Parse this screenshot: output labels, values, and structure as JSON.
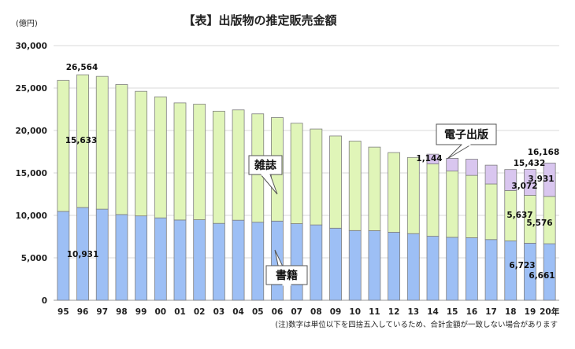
{
  "chart_data": {
    "type": "bar",
    "stacked": true,
    "title": "【表】出版物の推定販売金額",
    "unit_label": "(億円)",
    "categories": [
      "95",
      "96",
      "97",
      "98",
      "99",
      "00",
      "01",
      "02",
      "03",
      "04",
      "05",
      "06",
      "07",
      "08",
      "09",
      "10",
      "11",
      "12",
      "13",
      "14",
      "15",
      "16",
      "17",
      "18",
      "19",
      "20年"
    ],
    "series": [
      {
        "name": "書籍",
        "color": "#9dbff5",
        "values": [
          10470,
          10931,
          10730,
          10100,
          9940,
          9706,
          9456,
          9490,
          9056,
          9429,
          9197,
          9326,
          9026,
          8878,
          8492,
          8213,
          8199,
          8013,
          7851,
          7544,
          7419,
          7370,
          7152,
          6991,
          6723,
          6661
        ]
      },
      {
        "name": "雑誌",
        "color": "#e0f5b8",
        "values": [
          15430,
          15633,
          15644,
          15315,
          14672,
          14261,
          13794,
          13616,
          13222,
          12998,
          12767,
          12200,
          11827,
          11299,
          10864,
          10536,
          9844,
          9385,
          8972,
          8520,
          7801,
          7339,
          6548,
          5930,
          5637,
          5576
        ]
      },
      {
        "name": "電子出版",
        "color": "#d9c6ef",
        "values": [
          0,
          0,
          0,
          0,
          0,
          0,
          0,
          0,
          0,
          0,
          0,
          0,
          0,
          0,
          0,
          0,
          0,
          0,
          0,
          1144,
          1502,
          1909,
          2215,
          2479,
          3072,
          3931
        ]
      }
    ],
    "ylim": [
      0,
      30000
    ],
    "yticks": [
      "0",
      "5,000",
      "10,000",
      "15,000",
      "20,000",
      "25,000",
      "30,000"
    ],
    "grid": true,
    "data_labels": [
      {
        "text": "26,564"
      },
      {
        "text": "15,633"
      },
      {
        "text": "10,931"
      },
      {
        "text": "1,144"
      },
      {
        "text": "15,432"
      },
      {
        "text": "3,072"
      },
      {
        "text": "5,637"
      },
      {
        "text": "6,723"
      },
      {
        "text": "16,168"
      },
      {
        "text": "3,931"
      },
      {
        "text": "5,576"
      },
      {
        "text": "6,661"
      }
    ],
    "callouts": {
      "magazine": "雑誌",
      "book": "書籍",
      "ebook": "電子出版"
    },
    "footnote": "(注)数字は単位以下を四捨五入しているため、合計金額が一致しない場合があります"
  }
}
